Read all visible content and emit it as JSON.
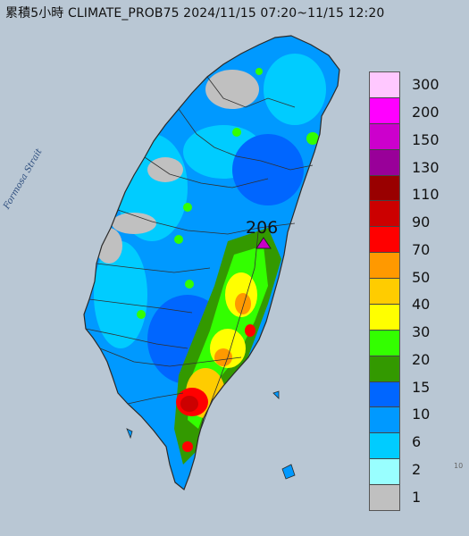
{
  "header": {
    "title": "累積5小時 CLIMATE_PROB75 2024/11/15 07:20~11/15 12:20"
  },
  "map": {
    "strait_label": "Formosa Strait",
    "max_marker": {
      "value": "206",
      "symbol": "triangle-marker",
      "color": "#c800c8"
    },
    "edge_tick": "10",
    "colors": {
      "sea": "#b9c7d4",
      "land_outline": "#2a2a2a",
      "county_border": "#303030"
    }
  },
  "legend": {
    "items": [
      {
        "label": "300",
        "color": "#ffc8ff"
      },
      {
        "label": "200",
        "color": "#ff00ff"
      },
      {
        "label": "150",
        "color": "#cc00cc"
      },
      {
        "label": "130",
        "color": "#990099"
      },
      {
        "label": "110",
        "color": "#990000"
      },
      {
        "label": "90",
        "color": "#cc0000"
      },
      {
        "label": "70",
        "color": "#ff0000"
      },
      {
        "label": "50",
        "color": "#ff9900"
      },
      {
        "label": "40",
        "color": "#ffcc00"
      },
      {
        "label": "30",
        "color": "#ffff00"
      },
      {
        "label": "20",
        "color": "#33ff00"
      },
      {
        "label": "15",
        "color": "#339900"
      },
      {
        "label": "10",
        "color": "#0066ff"
      },
      {
        "label": "6",
        "color": "#0099ff"
      },
      {
        "label": "2",
        "color": "#00ccff"
      },
      {
        "label": "1",
        "color": "#99ffff"
      },
      {
        "label": "",
        "color": "#c0c0c0"
      }
    ]
  }
}
